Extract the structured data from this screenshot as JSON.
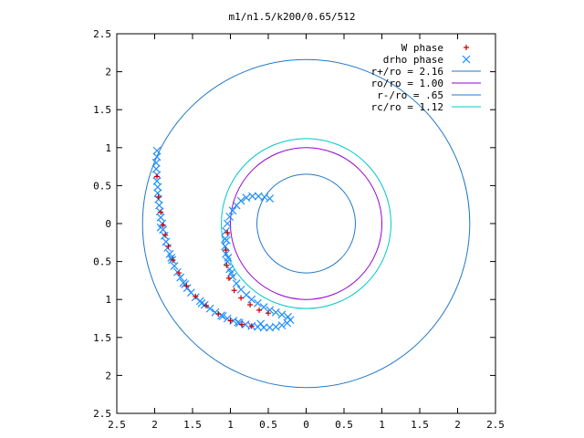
{
  "chart_data": {
    "type": "scatter",
    "title": "m1/n1.5/k200/0.65/512",
    "xlim": [
      -2.5,
      2.5
    ],
    "ylim": [
      -2.5,
      2.5
    ],
    "x_ticks": [
      -2.5,
      -2,
      -1.5,
      -1,
      -0.5,
      0,
      0.5,
      1,
      1.5,
      2,
      2.5
    ],
    "y_ticks": [
      -2.5,
      -2,
      -1.5,
      -1,
      -0.5,
      0,
      0.5,
      1,
      1.5,
      2,
      2.5
    ],
    "x_tick_labels": [
      "2.5",
      "2",
      "1.5",
      "1",
      "0.5",
      "0",
      "0.5",
      "1",
      "1.5",
      "2",
      "2.5"
    ],
    "y_tick_labels": [
      "2.5",
      "2",
      "1.5",
      "1",
      "0.5",
      "0",
      "0.5",
      "1",
      "1.5",
      "2",
      "2.5"
    ],
    "legend_position": "top-right",
    "grid": false,
    "circles": [
      {
        "label": "r+/ro = 2.16",
        "radius": 2.16,
        "color": "#1f78c8"
      },
      {
        "label": "ro/ro = 1.00",
        "radius": 1.0,
        "color": "#9400d3"
      },
      {
        "label": "r-/ro = .65",
        "radius": 0.65,
        "color": "#1f78c8"
      },
      {
        "label": "rc/ro = 1.12",
        "radius": 1.12,
        "color": "#00c8c8"
      }
    ],
    "series": [
      {
        "name": "W phase",
        "marker": "+",
        "color": "#cc0000",
        "points": [
          [
            -1.97,
            0.62
          ],
          [
            -1.95,
            0.35
          ],
          [
            -1.92,
            0.15
          ],
          [
            -1.89,
            -0.02
          ],
          [
            -1.86,
            -0.15
          ],
          [
            -1.82,
            -0.3
          ],
          [
            -1.76,
            -0.48
          ],
          [
            -1.68,
            -0.65
          ],
          [
            -1.58,
            -0.82
          ],
          [
            -1.46,
            -0.96
          ],
          [
            -1.32,
            -1.08
          ],
          [
            -1.16,
            -1.19
          ],
          [
            -1.0,
            -1.28
          ],
          [
            -0.85,
            -1.33
          ],
          [
            -0.72,
            -1.35
          ],
          [
            -1.05,
            -0.55
          ],
          [
            -1.02,
            -0.72
          ],
          [
            -0.95,
            -0.88
          ],
          [
            -0.86,
            -0.98
          ],
          [
            -0.74,
            -1.07
          ],
          [
            -0.62,
            -1.14
          ],
          [
            -0.5,
            -1.18
          ],
          [
            -1.06,
            -0.35
          ],
          [
            -1.04,
            -0.12
          ]
        ]
      },
      {
        "name": "drho phase",
        "marker": "x",
        "color": "#1f8fff",
        "points": [
          [
            -1.97,
            0.96
          ],
          [
            -1.97,
            0.88
          ],
          [
            -1.98,
            0.8
          ],
          [
            -1.98,
            0.72
          ],
          [
            -1.97,
            0.64
          ],
          [
            -1.97,
            0.56
          ],
          [
            -1.96,
            0.48
          ],
          [
            -1.96,
            0.4
          ],
          [
            -1.95,
            0.32
          ],
          [
            -1.94,
            0.24
          ],
          [
            -1.93,
            0.16
          ],
          [
            -1.92,
            0.08
          ],
          [
            -1.9,
            0.0
          ],
          [
            -1.89,
            -0.08
          ],
          [
            -1.87,
            -0.16
          ],
          [
            -1.85,
            -0.24
          ],
          [
            -1.83,
            -0.32
          ],
          [
            -1.8,
            -0.4
          ],
          [
            -1.77,
            -0.48
          ],
          [
            -1.74,
            -0.56
          ],
          [
            -1.7,
            -0.64
          ],
          [
            -1.66,
            -0.71
          ],
          [
            -1.62,
            -0.78
          ],
          [
            -1.57,
            -0.85
          ],
          [
            -1.52,
            -0.91
          ],
          [
            -1.46,
            -0.97
          ],
          [
            -1.4,
            -1.02
          ],
          [
            -1.34,
            -1.07
          ],
          [
            -1.27,
            -1.12
          ],
          [
            -1.2,
            -1.17
          ],
          [
            -1.12,
            -1.21
          ],
          [
            -1.04,
            -1.25
          ],
          [
            -0.96,
            -1.28
          ],
          [
            -0.88,
            -1.31
          ],
          [
            -0.8,
            -1.33
          ],
          [
            -0.72,
            -1.35
          ],
          [
            -0.64,
            -1.36
          ],
          [
            -0.56,
            -1.37
          ],
          [
            -0.48,
            -1.37
          ],
          [
            -0.4,
            -1.36
          ],
          [
            -0.32,
            -1.34
          ],
          [
            -0.25,
            -1.31
          ],
          [
            -0.21,
            -1.27
          ],
          [
            -0.24,
            -1.23
          ],
          [
            -0.32,
            -1.2
          ],
          [
            -0.4,
            -1.17
          ],
          [
            -0.48,
            -1.14
          ],
          [
            -0.56,
            -1.1
          ],
          [
            -0.64,
            -1.05
          ],
          [
            -0.72,
            -1.0
          ],
          [
            -0.79,
            -0.94
          ],
          [
            -0.86,
            -0.87
          ],
          [
            -0.92,
            -0.79
          ],
          [
            -0.97,
            -0.7
          ],
          [
            -1.01,
            -0.6
          ],
          [
            -1.04,
            -0.5
          ],
          [
            -1.06,
            -0.4
          ],
          [
            -1.07,
            -0.3
          ],
          [
            -1.07,
            -0.2
          ],
          [
            -1.06,
            -0.1
          ],
          [
            -1.04,
            0.0
          ],
          [
            -1.01,
            0.09
          ],
          [
            -0.97,
            0.17
          ],
          [
            -0.92,
            0.24
          ],
          [
            -0.86,
            0.3
          ],
          [
            -0.79,
            0.34
          ],
          [
            -0.71,
            0.36
          ],
          [
            -0.63,
            0.36
          ],
          [
            -0.55,
            0.35
          ],
          [
            -0.48,
            0.33
          ],
          [
            -1.05,
            -0.22
          ],
          [
            -1.03,
            -0.45
          ],
          [
            -0.99,
            -0.65
          ],
          [
            -1.92,
            -0.05
          ],
          [
            -1.78,
            -0.45
          ],
          [
            -1.6,
            -0.8
          ],
          [
            -1.38,
            -1.05
          ],
          [
            -1.1,
            -1.22
          ],
          [
            -0.9,
            -1.3
          ],
          [
            -0.6,
            -1.32
          ]
        ]
      }
    ]
  }
}
